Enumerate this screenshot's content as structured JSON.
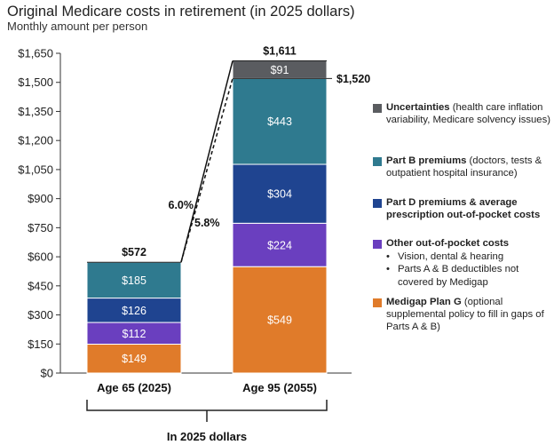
{
  "chart_data": {
    "type": "stacked-bar",
    "title": "Original Medicare costs in retirement (in 2025 dollars)",
    "subtitle": "Monthly amount per person",
    "ylim": [
      0,
      1650
    ],
    "yticks": [
      0,
      150,
      300,
      450,
      600,
      750,
      900,
      1050,
      1200,
      1350,
      1500,
      1650
    ],
    "ytick_labels": [
      "$0",
      "$150",
      "$300",
      "$450",
      "$600",
      "$750",
      "$900",
      "$1,050",
      "$1,200",
      "$1,350",
      "$1,500",
      "$1,650"
    ],
    "categories": [
      "Age 65 (2025)",
      "Age 95 (2055)"
    ],
    "series": [
      {
        "name": "Medigap Plan G",
        "color": "#e07b2a",
        "values": [
          149,
          549
        ],
        "labels": [
          "$149",
          "$549"
        ]
      },
      {
        "name": "Other out-of-pocket costs",
        "color": "#6a3fbf",
        "values": [
          112,
          224
        ],
        "labels": [
          "$112",
          "$224"
        ]
      },
      {
        "name": "Part D premiums & average prescription out-of-pocket costs",
        "color": "#1f4490",
        "values": [
          126,
          304
        ],
        "labels": [
          "$126",
          "$304"
        ]
      },
      {
        "name": "Part B premiums",
        "color": "#2f7a8f",
        "values": [
          185,
          443
        ],
        "labels": [
          "$185",
          "$443"
        ]
      },
      {
        "name": "Uncertainties",
        "color": "#5a5c60",
        "values": [
          0,
          91
        ],
        "labels": [
          "",
          "$91"
        ]
      }
    ],
    "totals": [
      572,
      1611
    ],
    "total_labels": [
      "$572",
      "$1,611"
    ],
    "subtotal": {
      "value": 1520,
      "label": "$1,520"
    },
    "growth_annotations": {
      "solid": "6.0%",
      "dashed": "5.8%"
    },
    "bracket_label": "In 2025 dollars"
  },
  "legend": [
    {
      "key": "uncertainties",
      "color": "#5a5c60",
      "bold": "Uncertainties",
      "text": " (health care inflation variability, Medicare solvency issues)",
      "sub": []
    },
    {
      "key": "part-b",
      "color": "#2f7a8f",
      "bold": "Part B premiums",
      "text": " (doctors, tests & outpatient hospital insurance)",
      "sub": []
    },
    {
      "key": "part-d",
      "color": "#1f4490",
      "bold": "Part D premiums & average prescription out-of-pocket costs",
      "text": "",
      "sub": []
    },
    {
      "key": "other-oop",
      "color": "#6a3fbf",
      "bold": "Other out-of-pocket costs",
      "text": "",
      "sub": [
        "Vision, dental & hearing",
        "Parts A & B deductibles not covered by Medigap"
      ]
    },
    {
      "key": "medigap",
      "color": "#e07b2a",
      "bold": "Medigap Plan G",
      "text": " (optional supplemental policy to fill in gaps of Parts A & B)",
      "sub": []
    }
  ]
}
